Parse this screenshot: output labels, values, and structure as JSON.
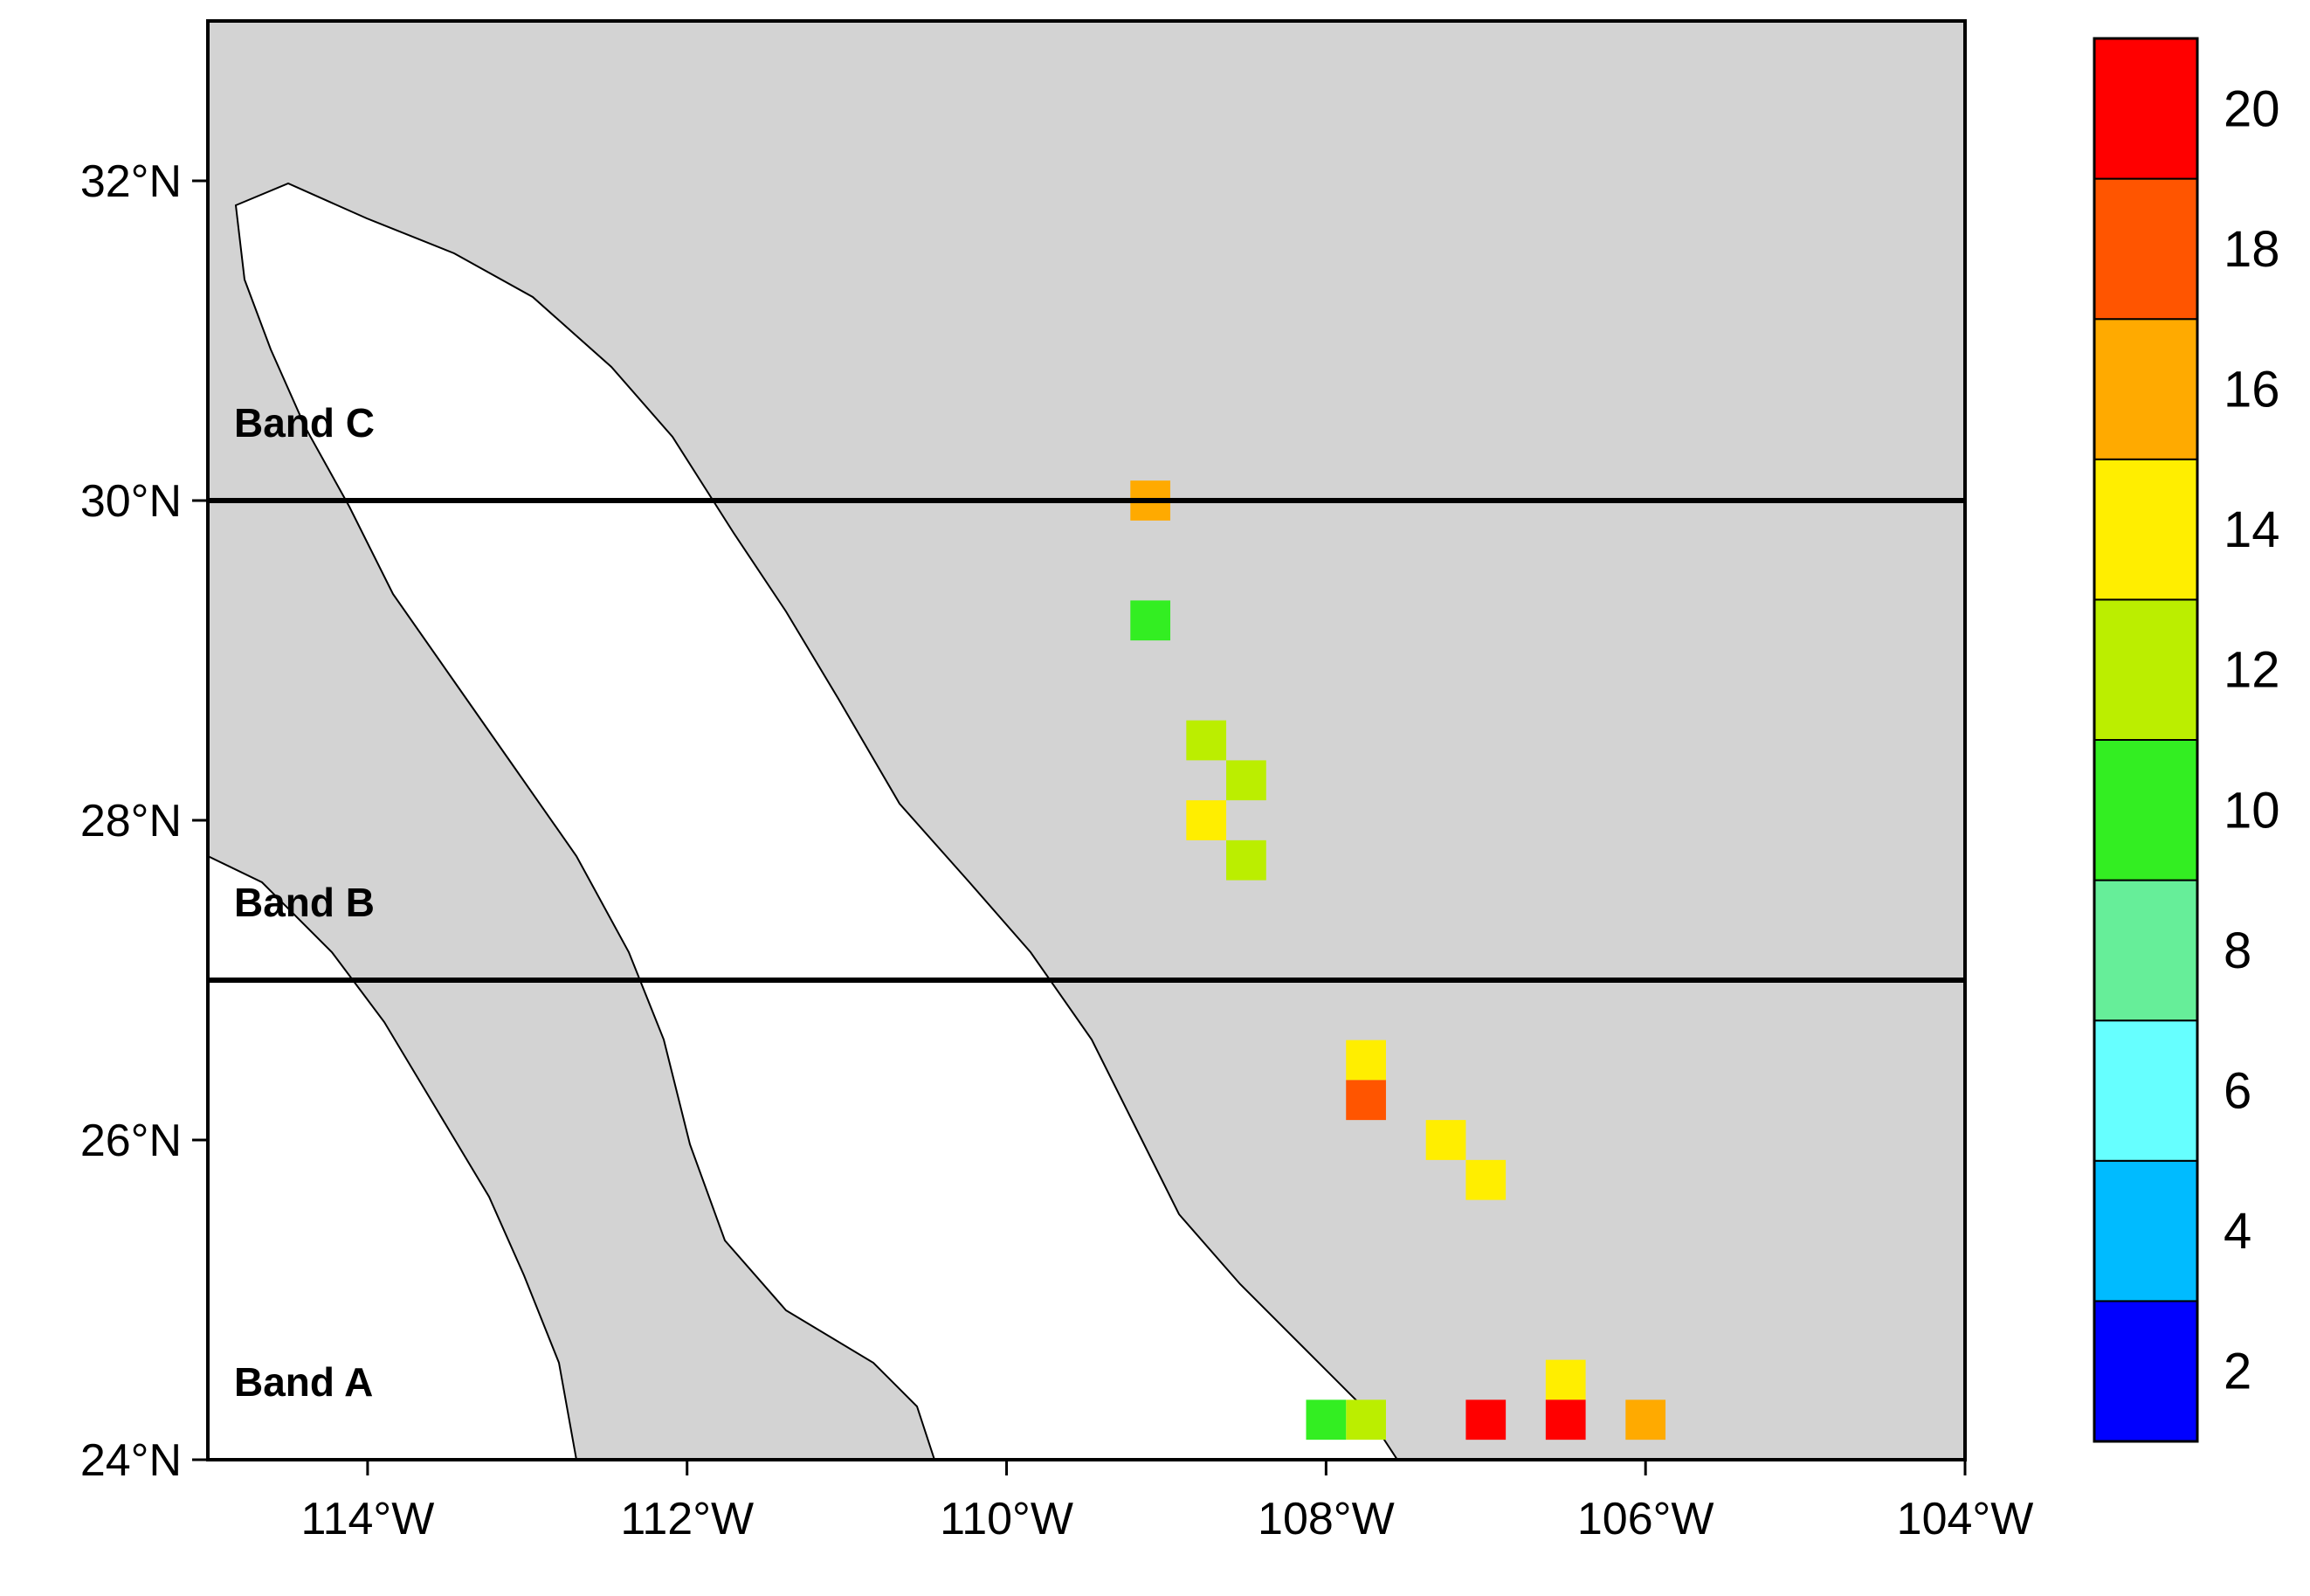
{
  "map": {
    "lon_range": [
      -115,
      -104
    ],
    "lat_range": [
      24,
      33
    ],
    "x_ticks": [
      {
        "lon": -114,
        "label": "114°W"
      },
      {
        "lon": -112,
        "label": "112°W"
      },
      {
        "lon": -110,
        "label": "110°W"
      },
      {
        "lon": -108,
        "label": "108°W"
      },
      {
        "lon": -106,
        "label": "106°W"
      },
      {
        "lon": -104,
        "label": "104°W"
      }
    ],
    "y_ticks": [
      {
        "lat": 24,
        "label": "24°N"
      },
      {
        "lat": 26,
        "label": "26°N"
      },
      {
        "lat": 28,
        "label": "28°N"
      },
      {
        "lat": 30,
        "label": "30°N"
      },
      {
        "lat": 32,
        "label": "32°N"
      }
    ],
    "band_boundaries_lat": [
      27,
      30
    ],
    "bands": [
      {
        "label": "Band A",
        "lat": 24.4
      },
      {
        "label": "Band B",
        "lat": 27.4
      },
      {
        "label": "Band C",
        "lat": 30.4
      }
    ],
    "colors": {
      "land": "#d3d3d3",
      "sea": "#ffffff",
      "frame": "#000000"
    }
  },
  "colorbar": {
    "labels": [
      "2",
      "4",
      "6",
      "8",
      "10",
      "12",
      "14",
      "16",
      "18",
      "20"
    ],
    "colors": [
      "#0000ff",
      "#00bbff",
      "#66ffff",
      "#66ee99",
      "#33ee22",
      "#bbee00",
      "#ffee00",
      "#ffaa00",
      "#ff5500",
      "#ff0000"
    ]
  },
  "chart_data": {
    "type": "heatmap",
    "grid_cell_deg": 0.25,
    "color_scale_levels": [
      2,
      4,
      6,
      8,
      10,
      12,
      14,
      16,
      18,
      20
    ],
    "cells": [
      {
        "lon": -109.1,
        "lat": 30.0,
        "value": 15
      },
      {
        "lon": -109.1,
        "lat": 29.25,
        "value": 10
      },
      {
        "lon": -108.75,
        "lat": 28.5,
        "value": 12
      },
      {
        "lon": -108.5,
        "lat": 28.25,
        "value": 12
      },
      {
        "lon": -108.75,
        "lat": 28.0,
        "value": 14
      },
      {
        "lon": -108.5,
        "lat": 27.75,
        "value": 12
      },
      {
        "lon": -107.75,
        "lat": 26.5,
        "value": 14
      },
      {
        "lon": -107.75,
        "lat": 26.25,
        "value": 17
      },
      {
        "lon": -107.25,
        "lat": 26.0,
        "value": 13
      },
      {
        "lon": -107.0,
        "lat": 25.75,
        "value": 14
      },
      {
        "lon": -106.5,
        "lat": 24.5,
        "value": 14
      },
      {
        "lon": -107.0,
        "lat": 24.25,
        "value": 19
      },
      {
        "lon": -106.5,
        "lat": 24.25,
        "value": 21
      },
      {
        "lon": -106.0,
        "lat": 24.25,
        "value": 16
      },
      {
        "lon": -107.75,
        "lat": 24.25,
        "value": 11
      },
      {
        "lon": -108.0,
        "lat": 24.25,
        "value": 9
      }
    ]
  }
}
